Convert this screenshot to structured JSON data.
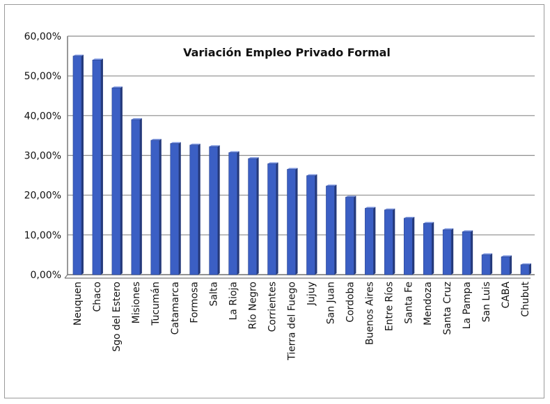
{
  "chart_data": {
    "type": "bar",
    "title": "Variación Empleo Privado Formal",
    "xlabel": "",
    "ylabel": "",
    "ylim": [
      0,
      60
    ],
    "ytick_values": [
      0,
      10,
      20,
      30,
      40,
      50,
      60
    ],
    "ytick_labels": [
      "0,00%",
      "10,00%",
      "20,00%",
      "30,00%",
      "40,00%",
      "50,00%",
      "60,00%"
    ],
    "grid": true,
    "legend": "none",
    "bar_color": "#3b5fc4",
    "categories": [
      "Neuquen",
      "Chaco",
      "Sgo del Estero",
      "Misiones",
      "Tucumán",
      "Catamarca",
      "Formosa",
      "Salta",
      "La Rioja",
      "Río Negro",
      "Corrientes",
      "Tierra del Fuego",
      "Jujuy",
      "San Juan",
      "Cordoba",
      "Buenos Aires",
      "Entre Ríos",
      "Santa Fe",
      "Mendoza",
      "Santa Cruz",
      "La Pampa",
      "San Luis",
      "CABA",
      "Chubut"
    ],
    "values": [
      55.0,
      54.0,
      47.0,
      39.0,
      33.8,
      33.0,
      32.6,
      32.2,
      30.7,
      29.2,
      27.9,
      26.5,
      24.9,
      22.3,
      19.5,
      16.7,
      16.3,
      14.2,
      12.9,
      11.3,
      10.8,
      5.0,
      4.5,
      2.5
    ]
  }
}
